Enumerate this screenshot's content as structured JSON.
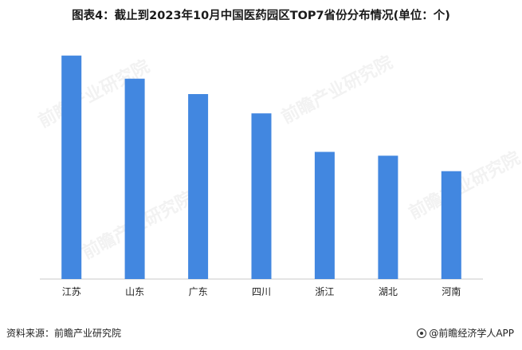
{
  "title": "图表4：截止到2023年10月中国医药园区TOP7省份分布情况(单位：个)",
  "source": "资料来源：前瞻产业研究院",
  "footer_brand": "@前瞻经济学人APP",
  "watermark_text": "前瞻产业研究院",
  "colors": {
    "bar": "#4287e0",
    "axis": "#c8c8c8"
  },
  "chart_data": {
    "type": "bar",
    "title": "图表4：截止到2023年10月中国医药园区TOP7省份分布情况(单位：个)",
    "categories": [
      "江苏",
      "山东",
      "广东",
      "四川",
      "浙江",
      "湖北",
      "河南"
    ],
    "series": [
      {
        "values": [
          58,
          52,
          48,
          43,
          33,
          32,
          28
        ]
      }
    ],
    "xlabel": "",
    "ylabel": "",
    "ylim": [
      0,
      60
    ],
    "grid": false,
    "legend": "none"
  }
}
